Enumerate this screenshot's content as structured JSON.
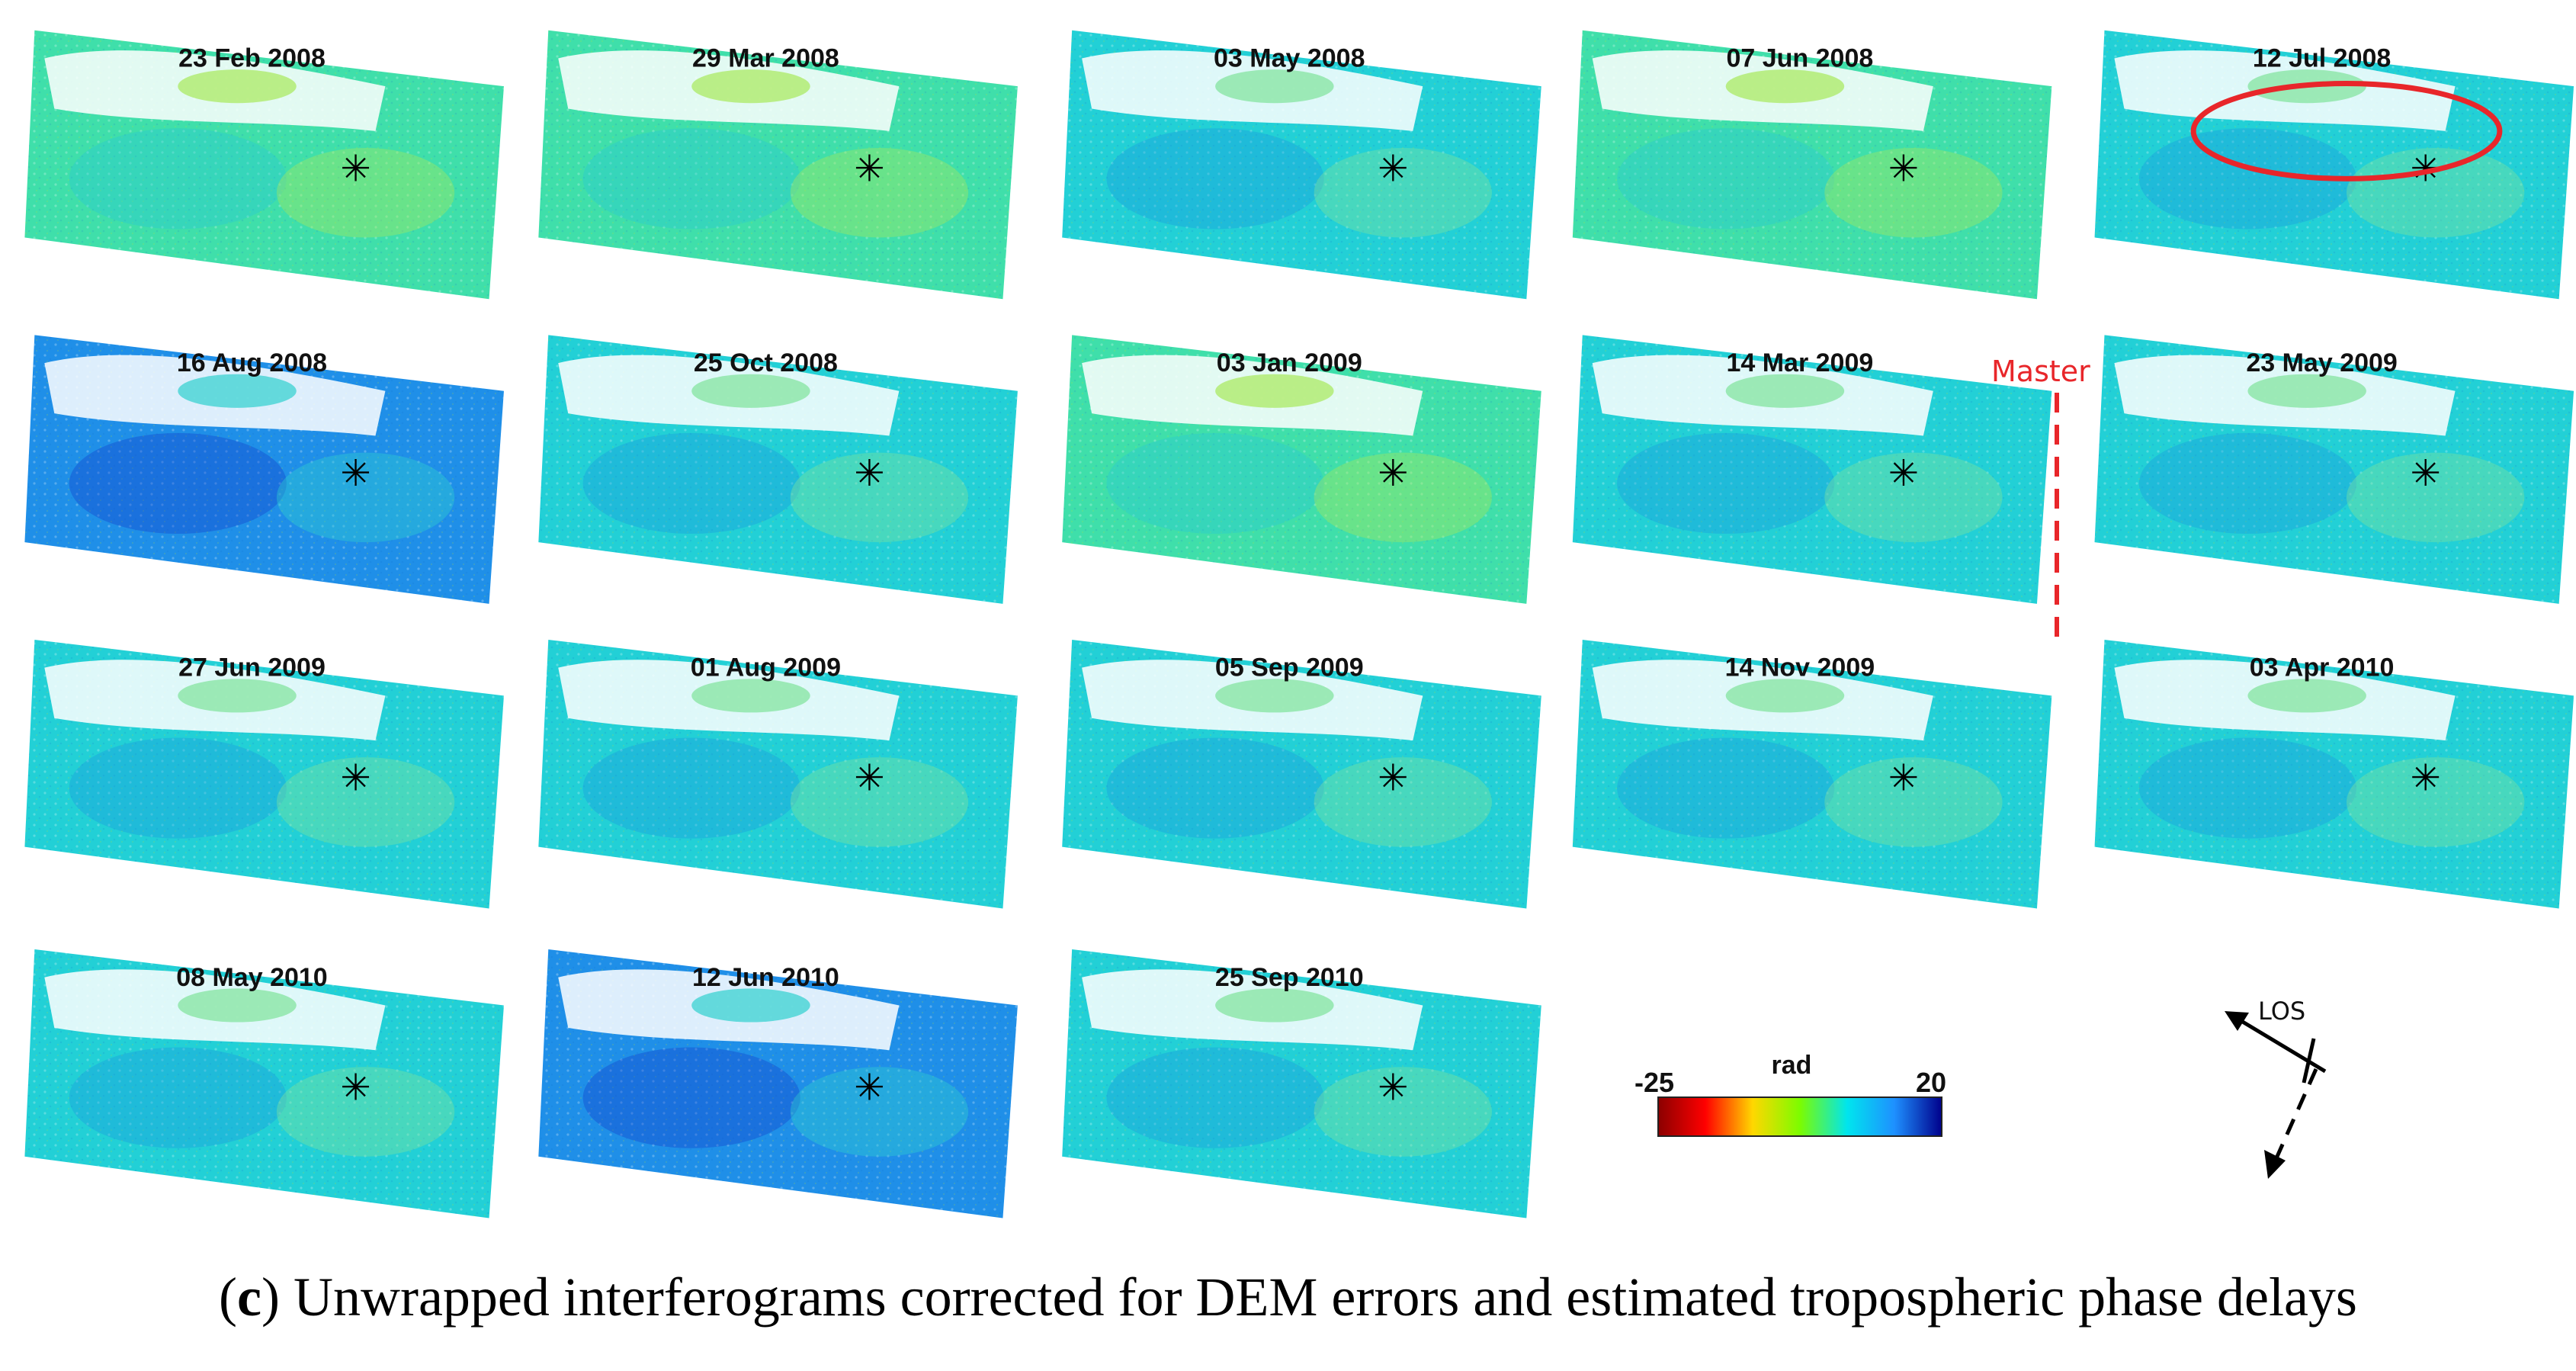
{
  "tiles": [
    {
      "date": "23 Feb 2008",
      "tone": "green"
    },
    {
      "date": "29 Mar 2008",
      "tone": "green"
    },
    {
      "date": "03 May 2008",
      "tone": "cyan"
    },
    {
      "date": "07 Jun 2008",
      "tone": "green"
    },
    {
      "date": "12 Jul 2008",
      "tone": "cyan",
      "highlighted": true
    },
    {
      "date": "16 Aug 2008",
      "tone": "blue"
    },
    {
      "date": "25 Oct 2008",
      "tone": "cyan"
    },
    {
      "date": "03 Jan 2009",
      "tone": "green"
    },
    {
      "date": "14 Mar 2009",
      "tone": "cyan"
    },
    {
      "date": "23 May 2009",
      "tone": "cyan"
    },
    {
      "date": "27 Jun 2009",
      "tone": "cyan"
    },
    {
      "date": "01 Aug 2009",
      "tone": "cyan"
    },
    {
      "date": "05 Sep 2009",
      "tone": "cyan"
    },
    {
      "date": "14 Nov 2009",
      "tone": "cyan"
    },
    {
      "date": "03 Apr 2010",
      "tone": "cyan"
    },
    {
      "date": "08 May 2010",
      "tone": "cyan"
    },
    {
      "date": "12 Jun 2010",
      "tone": "blue"
    },
    {
      "date": "25 Sep 2010",
      "tone": "cyan"
    }
  ],
  "master": {
    "label": "Master",
    "color": "#e8262a"
  },
  "colorbar": {
    "unit": "rad",
    "min_label": "-25",
    "max_label": "20",
    "min": -25,
    "max": 20,
    "colors": [
      "#8b0000",
      "#ff0000",
      "#ffd700",
      "#7cfc00",
      "#00e5ee",
      "#1e90ff",
      "#00008b"
    ]
  },
  "los": {
    "label": "LOS"
  },
  "caption": {
    "panel": "c",
    "text": "Unwrapped interferograms corrected for DEM errors and estimated tropospheric phase delays"
  },
  "colors": {
    "reference_star": "#000000",
    "highlight_ring": "#e8262a"
  }
}
